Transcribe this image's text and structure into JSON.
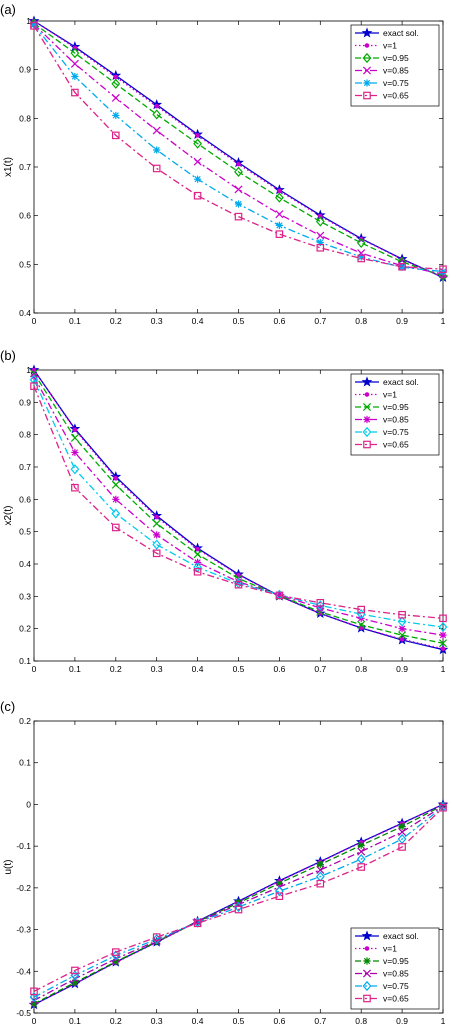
{
  "chart_data": [
    {
      "type": "line",
      "panel_label": "(a)",
      "title": "",
      "xlabel": "",
      "ylabel": "x1(t)",
      "xlim": [
        0,
        1
      ],
      "ylim": [
        0.4,
        1.0
      ],
      "x_ticks": [
        "0",
        "0.1",
        "0.2",
        "0.3",
        "0.4",
        "0.5",
        "0.6",
        "0.7",
        "0.8",
        "0.9",
        "1"
      ],
      "y_ticks": [
        "0.4",
        "0.5",
        "0.6",
        "0.7",
        "0.8",
        "0.9",
        "1"
      ],
      "grid": false,
      "legend_position": "top-right",
      "x": [
        0,
        0.1,
        0.2,
        0.3,
        0.4,
        0.5,
        0.6,
        0.7,
        0.8,
        0.9,
        1.0
      ],
      "series": [
        {
          "name": "exact sol.",
          "color": "#0000cc",
          "marker": "star",
          "dash": "solid",
          "values": [
            1.0,
            0.947,
            0.888,
            0.828,
            0.767,
            0.709,
            0.653,
            0.601,
            0.553,
            0.511,
            0.473
          ]
        },
        {
          "name": "v=1",
          "color": "#cc00cc",
          "marker": "dot",
          "dash": "dotted",
          "values": [
            1.0,
            0.945,
            0.885,
            0.825,
            0.765,
            0.706,
            0.651,
            0.599,
            0.552,
            0.51,
            0.473
          ]
        },
        {
          "name": "v=0.95",
          "color": "#00aa00",
          "marker": "diamond",
          "dash": "dashed",
          "values": [
            0.995,
            0.934,
            0.871,
            0.808,
            0.748,
            0.69,
            0.637,
            0.588,
            0.544,
            0.505,
            0.476
          ]
        },
        {
          "name": "v=0.85",
          "color": "#cc00cc",
          "marker": "x",
          "dash": "dashdot",
          "values": [
            0.993,
            0.912,
            0.842,
            0.775,
            0.711,
            0.654,
            0.603,
            0.559,
            0.523,
            0.497,
            0.48
          ]
        },
        {
          "name": "v=0.75",
          "color": "#00aaee",
          "marker": "asterisk",
          "dash": "dashdot",
          "values": [
            0.992,
            0.886,
            0.806,
            0.735,
            0.675,
            0.624,
            0.58,
            0.545,
            0.515,
            0.494,
            0.485
          ]
        },
        {
          "name": "v=0.65",
          "color": "#dd2288",
          "marker": "square",
          "dash": "dashdot",
          "values": [
            0.99,
            0.853,
            0.765,
            0.697,
            0.641,
            0.598,
            0.562,
            0.534,
            0.512,
            0.495,
            0.49
          ]
        }
      ]
    },
    {
      "type": "line",
      "panel_label": "(b)",
      "title": "",
      "xlabel": "",
      "ylabel": "x2(t)",
      "xlim": [
        0,
        1
      ],
      "ylim": [
        0.1,
        1.0
      ],
      "x_ticks": [
        "0",
        "0.1",
        "0.2",
        "0.3",
        "0.4",
        "0.5",
        "0.6",
        "0.7",
        "0.8",
        "0.9",
        "1"
      ],
      "y_ticks": [
        "0.1",
        "0.2",
        "0.3",
        "0.4",
        "0.5",
        "0.6",
        "0.7",
        "0.8",
        "0.9",
        "1"
      ],
      "grid": false,
      "legend_position": "top-right",
      "x": [
        0,
        0.1,
        0.2,
        0.3,
        0.4,
        0.5,
        0.6,
        0.7,
        0.8,
        0.9,
        1.0
      ],
      "series": [
        {
          "name": "exact sol.",
          "color": "#0000cc",
          "marker": "star",
          "dash": "solid",
          "values": [
            1.0,
            0.818,
            0.67,
            0.549,
            0.449,
            0.368,
            0.301,
            0.247,
            0.202,
            0.165,
            0.135
          ]
        },
        {
          "name": "v=1",
          "color": "#cc00cc",
          "marker": "dot",
          "dash": "dotted",
          "values": [
            1.0,
            0.815,
            0.665,
            0.545,
            0.446,
            0.366,
            0.3,
            0.247,
            0.203,
            0.167,
            0.138
          ]
        },
        {
          "name": "v=0.95",
          "color": "#00aa00",
          "marker": "x",
          "dash": "dashed",
          "values": [
            0.99,
            0.79,
            0.645,
            0.525,
            0.43,
            0.355,
            0.302,
            0.252,
            0.212,
            0.18,
            0.155
          ]
        },
        {
          "name": "v=0.85",
          "color": "#cc00cc",
          "marker": "asterisk",
          "dash": "dashdot",
          "values": [
            0.98,
            0.745,
            0.6,
            0.49,
            0.405,
            0.345,
            0.304,
            0.264,
            0.232,
            0.2,
            0.18
          ]
        },
        {
          "name": "v=0.75",
          "color": "#00ccee",
          "marker": "diamond",
          "dash": "dashdot",
          "values": [
            0.97,
            0.693,
            0.556,
            0.46,
            0.39,
            0.34,
            0.305,
            0.272,
            0.245,
            0.222,
            0.205
          ]
        },
        {
          "name": "v=0.65",
          "color": "#dd2288",
          "marker": "square",
          "dash": "dashdot",
          "values": [
            0.95,
            0.636,
            0.513,
            0.433,
            0.376,
            0.336,
            0.303,
            0.28,
            0.259,
            0.243,
            0.232
          ]
        }
      ]
    },
    {
      "type": "line",
      "panel_label": "(c)",
      "title": "",
      "xlabel": "",
      "ylabel": "u(t)",
      "xlim": [
        0,
        1
      ],
      "ylim": [
        -0.5,
        0.2
      ],
      "x_ticks": [
        "0",
        "0.1",
        "0.2",
        "0.3",
        "0.4",
        "0.5",
        "0.6",
        "0.7",
        "0.8",
        "0.9",
        "1"
      ],
      "y_ticks": [
        "-0.5",
        "-0.4",
        "-0.3",
        "-0.2",
        "-0.1",
        "0",
        "0.1",
        "0.2"
      ],
      "grid": false,
      "legend_position": "bottom-right",
      "x": [
        0,
        0.1,
        0.2,
        0.3,
        0.4,
        0.5,
        0.6,
        0.7,
        0.8,
        0.9,
        1.0
      ],
      "series": [
        {
          "name": "exact sol.",
          "color": "#0000cc",
          "marker": "star",
          "dash": "solid",
          "values": [
            -0.48,
            -0.43,
            -0.378,
            -0.33,
            -0.28,
            -0.232,
            -0.183,
            -0.137,
            -0.09,
            -0.045,
            0.0
          ]
        },
        {
          "name": "v=1",
          "color": "#cc00cc",
          "marker": "dot",
          "dash": "dotted",
          "values": [
            -0.48,
            -0.43,
            -0.379,
            -0.331,
            -0.281,
            -0.233,
            -0.184,
            -0.138,
            -0.091,
            -0.046,
            0.0
          ]
        },
        {
          "name": "v=0.95",
          "color": "#008800",
          "marker": "asterisk",
          "dash": "dashed",
          "values": [
            -0.478,
            -0.427,
            -0.377,
            -0.329,
            -0.281,
            -0.236,
            -0.189,
            -0.144,
            -0.098,
            -0.053,
            -0.002
          ]
        },
        {
          "name": "v=0.85",
          "color": "#aa00aa",
          "marker": "x",
          "dash": "dashdot",
          "values": [
            -0.47,
            -0.418,
            -0.37,
            -0.327,
            -0.282,
            -0.24,
            -0.198,
            -0.157,
            -0.113,
            -0.066,
            -0.004
          ]
        },
        {
          "name": "v=0.75",
          "color": "#00aaee",
          "marker": "diamond",
          "dash": "dashdot",
          "values": [
            -0.462,
            -0.41,
            -0.362,
            -0.323,
            -0.283,
            -0.246,
            -0.208,
            -0.173,
            -0.131,
            -0.083,
            -0.006
          ]
        },
        {
          "name": "v=0.65",
          "color": "#dd2288",
          "marker": "square",
          "dash": "dashdot",
          "values": [
            -0.448,
            -0.398,
            -0.354,
            -0.318,
            -0.285,
            -0.252,
            -0.22,
            -0.19,
            -0.15,
            -0.102,
            -0.008
          ]
        }
      ]
    }
  ]
}
